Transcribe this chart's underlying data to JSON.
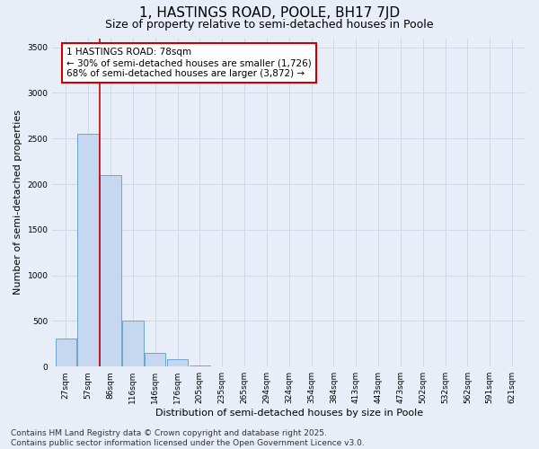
{
  "title": "1, HASTINGS ROAD, POOLE, BH17 7JD",
  "subtitle": "Size of property relative to semi-detached houses in Poole",
  "xlabel": "Distribution of semi-detached houses by size in Poole",
  "ylabel": "Number of semi-detached properties",
  "categories": [
    "27sqm",
    "57sqm",
    "86sqm",
    "116sqm",
    "146sqm",
    "176sqm",
    "205sqm",
    "235sqm",
    "265sqm",
    "294sqm",
    "324sqm",
    "354sqm",
    "384sqm",
    "413sqm",
    "443sqm",
    "473sqm",
    "502sqm",
    "532sqm",
    "562sqm",
    "591sqm",
    "621sqm"
  ],
  "values": [
    305,
    2550,
    2100,
    500,
    150,
    80,
    10,
    0,
    0,
    0,
    0,
    0,
    0,
    0,
    0,
    0,
    0,
    0,
    0,
    0,
    0
  ],
  "bar_color": "#c5d8f0",
  "bar_edge_color": "#5b9bd5",
  "vline_color": "#cc0000",
  "annotation_text": "1 HASTINGS ROAD: 78sqm\n← 30% of semi-detached houses are smaller (1,726)\n68% of semi-detached houses are larger (3,872) →",
  "annotation_box_color": "#cc0000",
  "annotation_fill": "#ffffff",
  "ylim": [
    0,
    3600
  ],
  "yticks": [
    0,
    500,
    1000,
    1500,
    2000,
    2500,
    3000,
    3500
  ],
  "grid_color": "#d0d8e8",
  "background_color": "#e8eef8",
  "fig_background_color": "#e8eef8",
  "footer_text": "Contains HM Land Registry data © Crown copyright and database right 2025.\nContains public sector information licensed under the Open Government Licence v3.0.",
  "title_fontsize": 11,
  "subtitle_fontsize": 9,
  "axis_label_fontsize": 8,
  "tick_fontsize": 6.5,
  "annotation_fontsize": 7.5,
  "footer_fontsize": 6.5
}
